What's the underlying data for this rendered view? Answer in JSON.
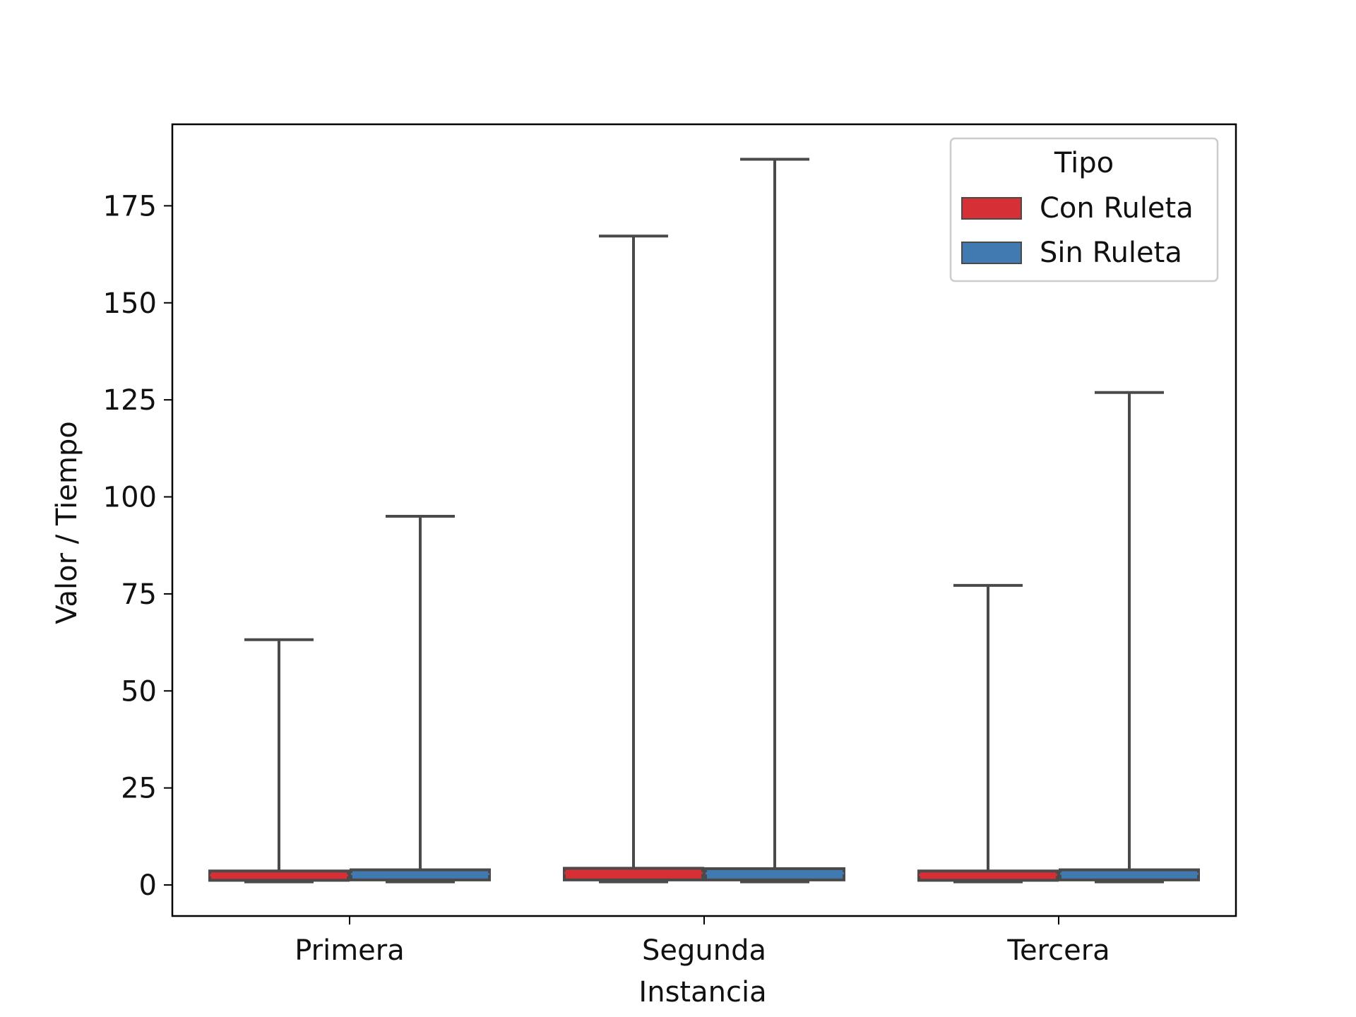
{
  "chart_data": {
    "type": "box",
    "title": "",
    "xlabel": "Instancia",
    "ylabel": "Valor / Tiempo",
    "categories": [
      "Primera",
      "Segunda",
      "Tercera"
    ],
    "ylim": [
      -8,
      196
    ],
    "yticks": [
      0,
      25,
      50,
      75,
      100,
      125,
      150,
      175
    ],
    "legend": {
      "title": "Tipo",
      "placement": "top-right"
    },
    "series": [
      {
        "name": "Con Ruleta",
        "color": "#d62f35",
        "boxes": [
          {
            "category": "Primera",
            "min": 0.8,
            "q1": 1.2,
            "median": 2.5,
            "q3": 3.6,
            "max": 63.2
          },
          {
            "category": "Segunda",
            "min": 0.8,
            "q1": 1.3,
            "median": 3.1,
            "q3": 4.3,
            "max": 167.2
          },
          {
            "category": "Tercera",
            "min": 0.8,
            "q1": 1.2,
            "median": 2.6,
            "q3": 3.6,
            "max": 77.2
          }
        ]
      },
      {
        "name": "Sin Ruleta",
        "color": "#4179b1",
        "boxes": [
          {
            "category": "Primera",
            "min": 0.8,
            "q1": 1.3,
            "median": 2.8,
            "q3": 3.9,
            "max": 95.0
          },
          {
            "category": "Segunda",
            "min": 0.8,
            "q1": 1.3,
            "median": 3.0,
            "q3": 4.2,
            "max": 187.0
          },
          {
            "category": "Tercera",
            "min": 0.8,
            "q1": 1.3,
            "median": 2.9,
            "q3": 3.9,
            "max": 126.9
          }
        ]
      }
    ]
  }
}
